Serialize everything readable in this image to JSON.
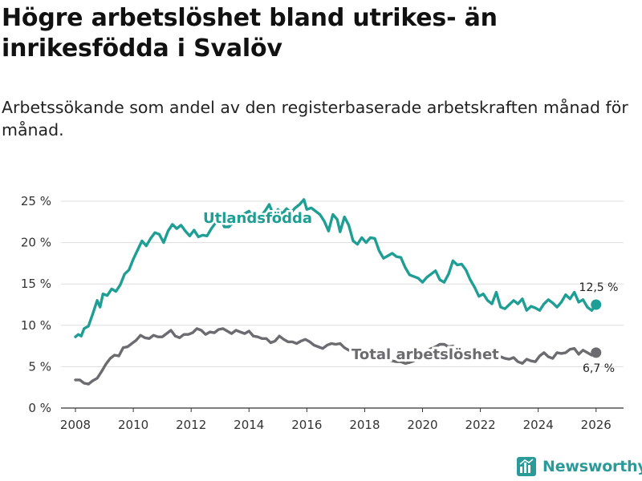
{
  "title": "Högre arbetslöshet bland utrikes- än inrikesfödda i Svalöv",
  "subtitle": "Arbetssökande som andel av den registerbaserade arbetskraften månad för månad.",
  "brand": "Newsworthy",
  "colors": {
    "utlandsfodda": "#1e9e94",
    "total": "#6b6b70",
    "grid": "#dddddd",
    "axis": "#333333",
    "brand": "#2a9b99"
  },
  "chart_data": {
    "type": "line",
    "title": "Högre arbetslöshet bland utrikes- än inrikesfödda i Svalöv",
    "xlabel": "",
    "ylabel": "",
    "xlim": [
      2007.5,
      2026.95
    ],
    "ylim": [
      0,
      25
    ],
    "yticks": [
      0,
      5,
      10,
      15,
      20,
      25
    ],
    "ytick_labels": [
      "0 %",
      "5 %",
      "10 %",
      "15 %",
      "20 %",
      "25 %"
    ],
    "xticks": [
      2008,
      2010,
      2012,
      2014,
      2016,
      2018,
      2020,
      2022,
      2024,
      2026
    ],
    "xtick_labels": [
      "2008",
      "2010",
      "2012",
      "2014",
      "2016",
      "2018",
      "2020",
      "2022",
      "2024",
      "2026"
    ],
    "grid": true,
    "series": [
      {
        "name": "Utlandsfödda",
        "end_label": "12,5 %",
        "end_value": 12.5,
        "end_x": 2026.0,
        "points": [
          [
            2008.0,
            8.6
          ],
          [
            2008.1,
            8.9
          ],
          [
            2008.2,
            8.7
          ],
          [
            2008.3,
            9.6
          ],
          [
            2008.45,
            9.9
          ],
          [
            2008.6,
            11.4
          ],
          [
            2008.75,
            13.0
          ],
          [
            2008.85,
            12.2
          ],
          [
            2008.95,
            13.8
          ],
          [
            2009.1,
            13.6
          ],
          [
            2009.25,
            14.4
          ],
          [
            2009.4,
            14.1
          ],
          [
            2009.55,
            14.9
          ],
          [
            2009.7,
            16.2
          ],
          [
            2009.85,
            16.7
          ],
          [
            2010.0,
            18.0
          ],
          [
            2010.15,
            19.1
          ],
          [
            2010.3,
            20.2
          ],
          [
            2010.45,
            19.6
          ],
          [
            2010.6,
            20.5
          ],
          [
            2010.75,
            21.2
          ],
          [
            2010.9,
            21.0
          ],
          [
            2011.05,
            20.0
          ],
          [
            2011.2,
            21.4
          ],
          [
            2011.35,
            22.2
          ],
          [
            2011.5,
            21.7
          ],
          [
            2011.65,
            22.1
          ],
          [
            2011.8,
            21.4
          ],
          [
            2011.95,
            20.8
          ],
          [
            2012.1,
            21.5
          ],
          [
            2012.25,
            20.7
          ],
          [
            2012.4,
            20.9
          ],
          [
            2012.55,
            20.8
          ],
          [
            2012.7,
            21.7
          ],
          [
            2012.85,
            22.4
          ],
          [
            2013.0,
            23.0
          ],
          [
            2013.15,
            21.9
          ],
          [
            2013.3,
            21.9
          ],
          [
            2013.45,
            22.4
          ],
          [
            2013.6,
            23.0
          ],
          [
            2013.8,
            23.4
          ],
          [
            2014.0,
            23.8
          ],
          [
            2014.2,
            22.6
          ],
          [
            2014.4,
            23.2
          ],
          [
            2014.55,
            23.8
          ],
          [
            2014.7,
            24.6
          ],
          [
            2014.85,
            23.3
          ],
          [
            2015.0,
            24.0
          ],
          [
            2015.15,
            23.5
          ],
          [
            2015.3,
            24.1
          ],
          [
            2015.45,
            23.6
          ],
          [
            2015.6,
            24.2
          ],
          [
            2015.75,
            24.6
          ],
          [
            2015.9,
            25.2
          ],
          [
            2016.0,
            24.0
          ],
          [
            2016.15,
            24.2
          ],
          [
            2016.3,
            23.8
          ],
          [
            2016.45,
            23.4
          ],
          [
            2016.6,
            22.6
          ],
          [
            2016.75,
            21.4
          ],
          [
            2016.9,
            23.4
          ],
          [
            2017.05,
            22.8
          ],
          [
            2017.15,
            21.3
          ],
          [
            2017.3,
            23.1
          ],
          [
            2017.45,
            22.1
          ],
          [
            2017.6,
            20.2
          ],
          [
            2017.75,
            19.8
          ],
          [
            2017.9,
            20.6
          ],
          [
            2018.05,
            20.0
          ],
          [
            2018.2,
            20.6
          ],
          [
            2018.35,
            20.5
          ],
          [
            2018.5,
            19.0
          ],
          [
            2018.65,
            18.1
          ],
          [
            2018.8,
            18.4
          ],
          [
            2018.95,
            18.7
          ],
          [
            2019.1,
            18.3
          ],
          [
            2019.25,
            18.2
          ],
          [
            2019.4,
            17.0
          ],
          [
            2019.55,
            16.1
          ],
          [
            2019.7,
            15.9
          ],
          [
            2019.85,
            15.7
          ],
          [
            2020.0,
            15.2
          ],
          [
            2020.15,
            15.8
          ],
          [
            2020.3,
            16.2
          ],
          [
            2020.45,
            16.6
          ],
          [
            2020.6,
            15.5
          ],
          [
            2020.75,
            15.2
          ],
          [
            2020.9,
            16.2
          ],
          [
            2021.05,
            17.8
          ],
          [
            2021.2,
            17.3
          ],
          [
            2021.35,
            17.4
          ],
          [
            2021.5,
            16.7
          ],
          [
            2021.65,
            15.5
          ],
          [
            2021.8,
            14.6
          ],
          [
            2021.95,
            13.5
          ],
          [
            2022.1,
            13.8
          ],
          [
            2022.25,
            13.0
          ],
          [
            2022.4,
            12.6
          ],
          [
            2022.55,
            14.0
          ],
          [
            2022.7,
            12.2
          ],
          [
            2022.85,
            12.0
          ],
          [
            2023.0,
            12.5
          ],
          [
            2023.15,
            13.0
          ],
          [
            2023.3,
            12.6
          ],
          [
            2023.45,
            13.2
          ],
          [
            2023.6,
            11.8
          ],
          [
            2023.75,
            12.3
          ],
          [
            2023.9,
            12.1
          ],
          [
            2024.05,
            11.8
          ],
          [
            2024.2,
            12.6
          ],
          [
            2024.35,
            13.1
          ],
          [
            2024.5,
            12.7
          ],
          [
            2024.65,
            12.2
          ],
          [
            2024.8,
            12.8
          ],
          [
            2024.95,
            13.7
          ],
          [
            2025.1,
            13.2
          ],
          [
            2025.25,
            14.0
          ],
          [
            2025.4,
            12.8
          ],
          [
            2025.55,
            13.1
          ],
          [
            2025.7,
            12.2
          ],
          [
            2025.85,
            11.8
          ],
          [
            2026.0,
            12.5
          ]
        ]
      },
      {
        "name": "Total arbetslöshet",
        "end_label": "6,7 %",
        "end_value": 6.7,
        "end_x": 2026.0,
        "points": [
          [
            2008.0,
            3.4
          ],
          [
            2008.15,
            3.4
          ],
          [
            2008.3,
            3.0
          ],
          [
            2008.45,
            2.9
          ],
          [
            2008.6,
            3.3
          ],
          [
            2008.75,
            3.6
          ],
          [
            2008.9,
            4.4
          ],
          [
            2009.05,
            5.3
          ],
          [
            2009.2,
            6.0
          ],
          [
            2009.35,
            6.4
          ],
          [
            2009.5,
            6.3
          ],
          [
            2009.65,
            7.3
          ],
          [
            2009.8,
            7.4
          ],
          [
            2009.95,
            7.8
          ],
          [
            2010.1,
            8.2
          ],
          [
            2010.25,
            8.8
          ],
          [
            2010.4,
            8.5
          ],
          [
            2010.55,
            8.4
          ],
          [
            2010.7,
            8.8
          ],
          [
            2010.85,
            8.6
          ],
          [
            2011.0,
            8.6
          ],
          [
            2011.15,
            9.0
          ],
          [
            2011.3,
            9.4
          ],
          [
            2011.45,
            8.7
          ],
          [
            2011.6,
            8.5
          ],
          [
            2011.75,
            8.9
          ],
          [
            2011.9,
            8.9
          ],
          [
            2012.05,
            9.1
          ],
          [
            2012.2,
            9.6
          ],
          [
            2012.35,
            9.4
          ],
          [
            2012.5,
            8.9
          ],
          [
            2012.65,
            9.2
          ],
          [
            2012.8,
            9.1
          ],
          [
            2012.95,
            9.5
          ],
          [
            2013.1,
            9.6
          ],
          [
            2013.25,
            9.3
          ],
          [
            2013.4,
            9.0
          ],
          [
            2013.55,
            9.4
          ],
          [
            2013.7,
            9.2
          ],
          [
            2013.85,
            9.0
          ],
          [
            2014.0,
            9.3
          ],
          [
            2014.15,
            8.7
          ],
          [
            2014.3,
            8.6
          ],
          [
            2014.45,
            8.4
          ],
          [
            2014.6,
            8.4
          ],
          [
            2014.75,
            7.9
          ],
          [
            2014.9,
            8.1
          ],
          [
            2015.05,
            8.7
          ],
          [
            2015.2,
            8.3
          ],
          [
            2015.35,
            8.0
          ],
          [
            2015.5,
            8.0
          ],
          [
            2015.65,
            7.8
          ],
          [
            2015.8,
            8.1
          ],
          [
            2015.95,
            8.3
          ],
          [
            2016.1,
            8.0
          ],
          [
            2016.25,
            7.6
          ],
          [
            2016.4,
            7.4
          ],
          [
            2016.55,
            7.2
          ],
          [
            2016.7,
            7.6
          ],
          [
            2016.85,
            7.8
          ],
          [
            2017.0,
            7.7
          ],
          [
            2017.15,
            7.8
          ],
          [
            2017.3,
            7.3
          ],
          [
            2017.45,
            7.0
          ],
          [
            2017.6,
            6.9
          ],
          [
            2017.75,
            6.6
          ],
          [
            2017.9,
            6.9
          ],
          [
            2018.05,
            6.8
          ],
          [
            2018.2,
            6.8
          ],
          [
            2018.35,
            6.6
          ],
          [
            2018.5,
            6.4
          ],
          [
            2018.65,
            6.0
          ],
          [
            2018.8,
            5.9
          ],
          [
            2018.95,
            5.7
          ],
          [
            2019.1,
            5.6
          ],
          [
            2019.25,
            5.6
          ],
          [
            2019.4,
            5.4
          ],
          [
            2019.55,
            5.5
          ],
          [
            2019.7,
            5.7
          ],
          [
            2019.85,
            6.0
          ],
          [
            2020.0,
            6.4
          ],
          [
            2020.15,
            6.9
          ],
          [
            2020.3,
            7.2
          ],
          [
            2020.45,
            7.4
          ],
          [
            2020.6,
            7.7
          ],
          [
            2020.75,
            7.7
          ],
          [
            2020.9,
            7.4
          ],
          [
            2021.05,
            7.5
          ],
          [
            2021.2,
            7.2
          ],
          [
            2021.35,
            7.0
          ],
          [
            2021.5,
            6.6
          ],
          [
            2021.65,
            6.3
          ],
          [
            2021.8,
            6.0
          ],
          [
            2021.95,
            6.1
          ],
          [
            2022.1,
            5.9
          ],
          [
            2022.25,
            5.8
          ],
          [
            2022.4,
            6.0
          ],
          [
            2022.55,
            6.3
          ],
          [
            2022.7,
            6.2
          ],
          [
            2022.85,
            6.0
          ],
          [
            2023.0,
            5.9
          ],
          [
            2023.15,
            6.1
          ],
          [
            2023.3,
            5.6
          ],
          [
            2023.45,
            5.4
          ],
          [
            2023.6,
            5.9
          ],
          [
            2023.75,
            5.7
          ],
          [
            2023.9,
            5.6
          ],
          [
            2024.05,
            6.3
          ],
          [
            2024.2,
            6.7
          ],
          [
            2024.35,
            6.2
          ],
          [
            2024.5,
            6.0
          ],
          [
            2024.65,
            6.7
          ],
          [
            2024.8,
            6.6
          ],
          [
            2024.95,
            6.7
          ],
          [
            2025.1,
            7.1
          ],
          [
            2025.25,
            7.2
          ],
          [
            2025.4,
            6.5
          ],
          [
            2025.55,
            7.0
          ],
          [
            2025.7,
            6.7
          ],
          [
            2025.85,
            6.4
          ],
          [
            2026.0,
            6.7
          ]
        ]
      }
    ],
    "annotations": [
      {
        "series": "Utlandsfödda",
        "text": "Utlandsfödda",
        "x": 2014.0,
        "y": 22.6
      },
      {
        "series": "Total arbetslöshet",
        "text": "Total arbetslöshet",
        "x": 2019.0,
        "y": 6.7
      }
    ]
  }
}
